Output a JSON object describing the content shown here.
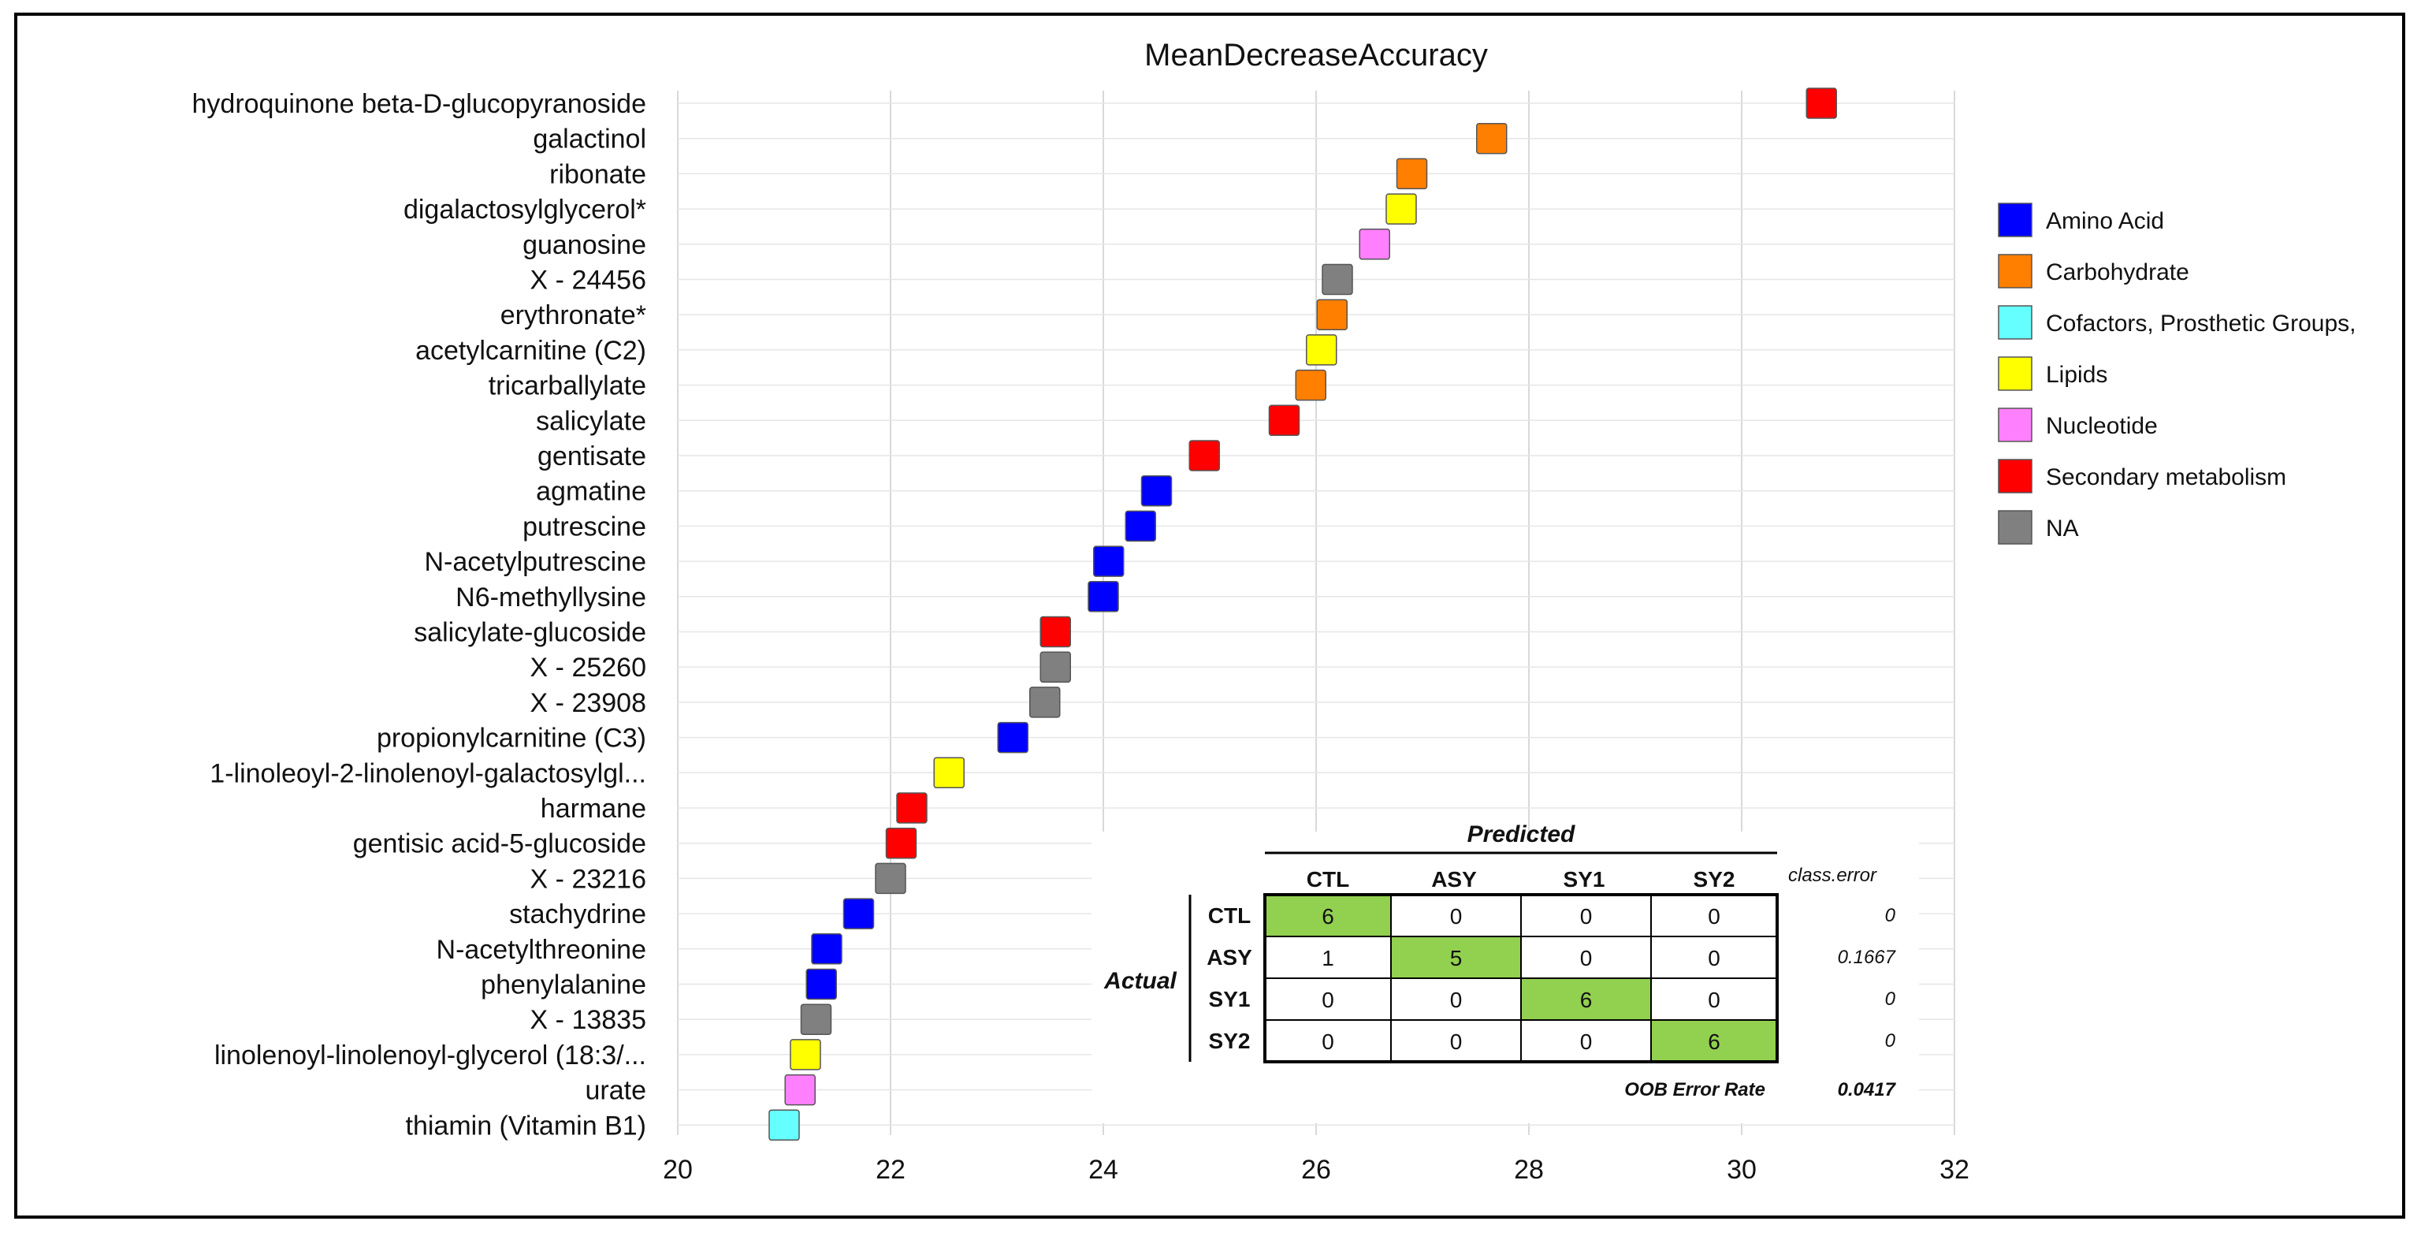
{
  "chart_data": {
    "type": "scatter",
    "title": "MeanDecreaseAccuracy",
    "xlabel": "",
    "ylabel": "",
    "xlim": [
      20,
      32
    ],
    "xticks": [
      20,
      22,
      24,
      26,
      28,
      30,
      32
    ],
    "grid": true,
    "legend_position": "right",
    "categories": [
      {
        "name": "Amino Acid",
        "color": "#0000ff"
      },
      {
        "name": "Carbohydrate",
        "color": "#ff7f00"
      },
      {
        "name": "Cofactors, Prosthetic Groups,",
        "color": "#66ffff"
      },
      {
        "name": "Lipids",
        "color": "#ffff00"
      },
      {
        "name": "Nucleotide",
        "color": "#ff80ff"
      },
      {
        "name": "Secondary metabolism",
        "color": "#ff0000"
      },
      {
        "name": "NA",
        "color": "#808080"
      }
    ],
    "points": [
      {
        "label": "hydroquinone beta-D-glucopyranoside",
        "value": 30.75,
        "category": "Secondary metabolism"
      },
      {
        "label": "galactinol",
        "value": 27.65,
        "category": "Carbohydrate"
      },
      {
        "label": "ribonate",
        "value": 26.9,
        "category": "Carbohydrate"
      },
      {
        "label": "digalactosylglycerol*",
        "value": 26.8,
        "category": "Lipids"
      },
      {
        "label": "guanosine",
        "value": 26.55,
        "category": "Nucleotide"
      },
      {
        "label": "X - 24456",
        "value": 26.2,
        "category": "NA"
      },
      {
        "label": "erythronate*",
        "value": 26.15,
        "category": "Carbohydrate"
      },
      {
        "label": "acetylcarnitine (C2)",
        "value": 26.05,
        "category": "Lipids"
      },
      {
        "label": "tricarballylate",
        "value": 25.95,
        "category": "Carbohydrate"
      },
      {
        "label": "salicylate",
        "value": 25.7,
        "category": "Secondary metabolism"
      },
      {
        "label": "gentisate",
        "value": 24.95,
        "category": "Secondary metabolism"
      },
      {
        "label": "agmatine",
        "value": 24.5,
        "category": "Amino Acid"
      },
      {
        "label": "putrescine",
        "value": 24.35,
        "category": "Amino Acid"
      },
      {
        "label": "N-acetylputrescine",
        "value": 24.05,
        "category": "Amino Acid"
      },
      {
        "label": "N6-methyllysine",
        "value": 24.0,
        "category": "Amino Acid"
      },
      {
        "label": "salicylate-glucoside",
        "value": 23.55,
        "category": "Secondary metabolism"
      },
      {
        "label": "X - 25260",
        "value": 23.55,
        "category": "NA"
      },
      {
        "label": "X - 23908",
        "value": 23.45,
        "category": "NA"
      },
      {
        "label": "propionylcarnitine (C3)",
        "value": 23.15,
        "category": "Amino Acid"
      },
      {
        "label": "1-linoleoyl-2-linolenoyl-galactosylgl...",
        "value": 22.55,
        "category": "Lipids"
      },
      {
        "label": "harmane",
        "value": 22.2,
        "category": "Secondary metabolism"
      },
      {
        "label": "gentisic acid-5-glucoside",
        "value": 22.1,
        "category": "Secondary metabolism"
      },
      {
        "label": "X - 23216",
        "value": 22.0,
        "category": "NA"
      },
      {
        "label": "stachydrine",
        "value": 21.7,
        "category": "Amino Acid"
      },
      {
        "label": "N-acetylthreonine",
        "value": 21.4,
        "category": "Amino Acid"
      },
      {
        "label": "phenylalanine",
        "value": 21.35,
        "category": "Amino Acid"
      },
      {
        "label": "X - 13835",
        "value": 21.3,
        "category": "NA"
      },
      {
        "label": "linolenoyl-linolenoyl-glycerol (18:3/...",
        "value": 21.2,
        "category": "Lipids"
      },
      {
        "label": "urate",
        "value": 21.15,
        "category": "Nucleotide"
      },
      {
        "label": "thiamin (Vitamin B1)",
        "value": 21.0,
        "category": "Cofactors, Prosthetic Groups,"
      }
    ]
  },
  "confusion_matrix": {
    "predicted_label": "Predicted",
    "actual_label": "Actual",
    "class_error_label": "class.error",
    "columns": [
      "CTL",
      "ASY",
      "SY1",
      "SY2"
    ],
    "rows": [
      {
        "label": "CTL",
        "values": [
          "6",
          "0",
          "0",
          "0"
        ],
        "class_error": "0"
      },
      {
        "label": "ASY",
        "values": [
          "1",
          "5",
          "0",
          "0"
        ],
        "class_error": "0.1667"
      },
      {
        "label": "SY1",
        "values": [
          "0",
          "0",
          "6",
          "0"
        ],
        "class_error": "0"
      },
      {
        "label": "SY2",
        "values": [
          "0",
          "0",
          "0",
          "6"
        ],
        "class_error": "0"
      }
    ],
    "oob_label": "OOB Error Rate",
    "oob_value": "0.0417",
    "highlight_color": "#92d050"
  }
}
